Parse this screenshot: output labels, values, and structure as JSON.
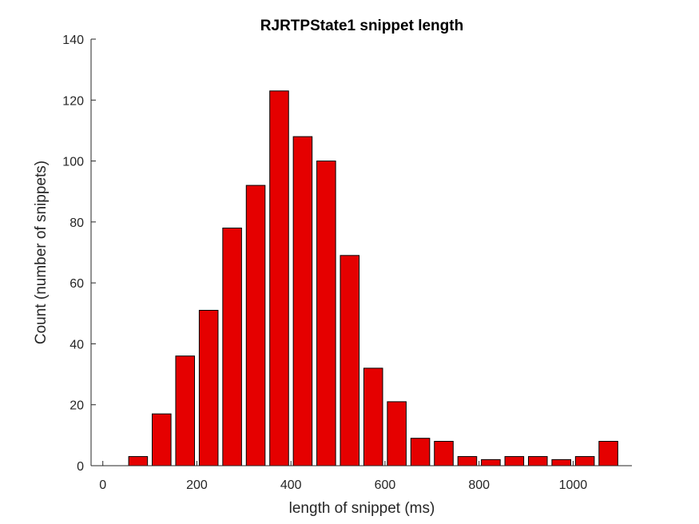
{
  "chart_data": {
    "type": "bar",
    "title": "RJRTPState1 snippet length",
    "xlabel": "length of snippet (ms)",
    "ylabel": "Count (number of snippets)",
    "xlim": [
      -25,
      1125
    ],
    "ylim": [
      0,
      140
    ],
    "x_ticks": [
      0,
      200,
      400,
      600,
      800,
      1000
    ],
    "y_ticks": [
      0,
      20,
      40,
      60,
      80,
      100,
      120,
      140
    ],
    "bar_width": 40,
    "x": [
      25,
      75,
      125,
      175,
      225,
      275,
      325,
      375,
      425,
      475,
      525,
      575,
      625,
      675,
      725,
      775,
      825,
      875,
      925,
      975,
      1025,
      1075
    ],
    "values": [
      0,
      3,
      17,
      36,
      51,
      78,
      92,
      123,
      108,
      100,
      69,
      32,
      21,
      9,
      8,
      3,
      2,
      3,
      3,
      2,
      3,
      8
    ],
    "bar_color": "#e50000",
    "edge_color": "#000000",
    "grid": false,
    "box": false
  }
}
